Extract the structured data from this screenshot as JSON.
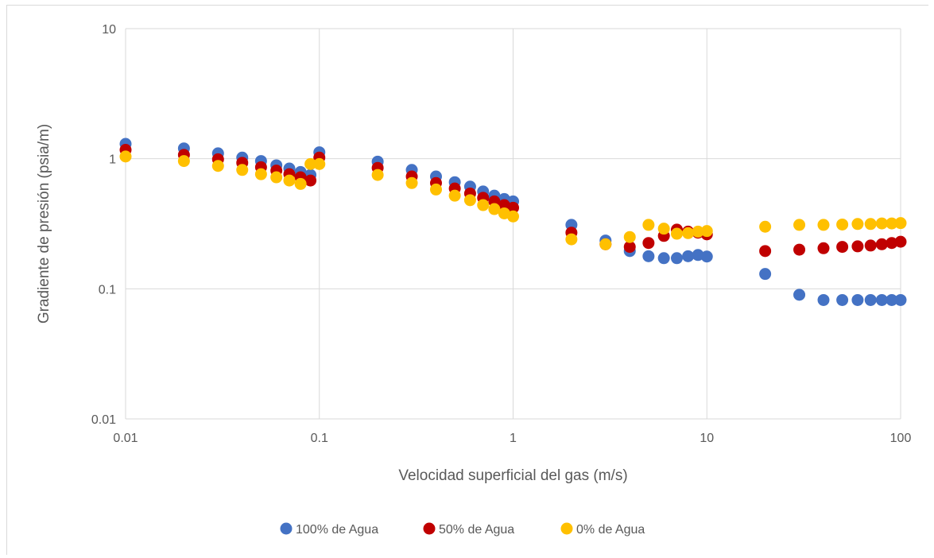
{
  "chart_data": {
    "type": "scatter",
    "title": "",
    "xlabel": "Velocidad superficial del gas (m/s)",
    "ylabel": "Gradiente de presión (psia/m)",
    "xscale": "log",
    "yscale": "log",
    "xlim": [
      0.01,
      100
    ],
    "ylim": [
      0.01,
      10
    ],
    "x_ticks": [
      0.01,
      0.1,
      1,
      10,
      100
    ],
    "x_tick_labels": [
      "0.01",
      "0.1",
      "1",
      "10",
      "100"
    ],
    "y_ticks": [
      0.01,
      0.1,
      1,
      10
    ],
    "y_tick_labels": [
      "0.01",
      "0.1",
      "1",
      "10"
    ],
    "grid": true,
    "legend_position": "bottom",
    "series": [
      {
        "name": "100% de Agua",
        "color": "#4472C4",
        "x": [
          0.01,
          0.02,
          0.03,
          0.04,
          0.05,
          0.06,
          0.07,
          0.08,
          0.09,
          0.1,
          0.2,
          0.3,
          0.4,
          0.5,
          0.6,
          0.7,
          0.8,
          0.9,
          1,
          2,
          3,
          4,
          5,
          6,
          7,
          8,
          9,
          10,
          20,
          30,
          40,
          50,
          60,
          70,
          80,
          90,
          100
        ],
        "y": [
          1.3,
          1.2,
          1.1,
          1.02,
          0.96,
          0.89,
          0.84,
          0.79,
          0.75,
          1.12,
          0.95,
          0.82,
          0.73,
          0.66,
          0.61,
          0.56,
          0.52,
          0.49,
          0.47,
          0.31,
          0.235,
          0.195,
          0.178,
          0.172,
          0.172,
          0.178,
          0.182,
          0.177,
          0.13,
          0.09,
          0.082,
          0.082,
          0.082,
          0.082,
          0.082,
          0.082,
          0.082
        ]
      },
      {
        "name": "50% de Agua",
        "color": "#C00000",
        "x": [
          0.01,
          0.02,
          0.03,
          0.04,
          0.05,
          0.06,
          0.07,
          0.08,
          0.09,
          0.1,
          0.2,
          0.3,
          0.4,
          0.5,
          0.6,
          0.7,
          0.8,
          0.9,
          1,
          2,
          3,
          4,
          5,
          6,
          7,
          8,
          9,
          10,
          20,
          30,
          40,
          50,
          60,
          70,
          80,
          90,
          100
        ],
        "y": [
          1.17,
          1.07,
          0.99,
          0.93,
          0.86,
          0.81,
          0.76,
          0.72,
          0.68,
          1.02,
          0.85,
          0.73,
          0.65,
          0.59,
          0.54,
          0.5,
          0.47,
          0.44,
          0.42,
          0.27,
          0.22,
          0.21,
          0.225,
          0.255,
          0.285,
          0.275,
          0.27,
          0.262,
          0.195,
          0.2,
          0.205,
          0.21,
          0.212,
          0.215,
          0.22,
          0.225,
          0.23
        ]
      },
      {
        "name": "0% de Agua",
        "color": "#FFC000",
        "x": [
          0.01,
          0.02,
          0.03,
          0.04,
          0.05,
          0.06,
          0.07,
          0.08,
          0.09,
          0.1,
          0.2,
          0.3,
          0.4,
          0.5,
          0.6,
          0.7,
          0.8,
          0.9,
          1,
          2,
          3,
          4,
          5,
          6,
          7,
          8,
          9,
          10,
          20,
          30,
          40,
          50,
          60,
          70,
          80,
          90,
          100
        ],
        "y": [
          1.04,
          0.96,
          0.88,
          0.82,
          0.76,
          0.72,
          0.68,
          0.64,
          0.91,
          0.91,
          0.75,
          0.65,
          0.58,
          0.52,
          0.48,
          0.44,
          0.41,
          0.38,
          0.36,
          0.24,
          0.22,
          0.25,
          0.31,
          0.29,
          0.265,
          0.268,
          0.275,
          0.278,
          0.3,
          0.31,
          0.31,
          0.312,
          0.315,
          0.315,
          0.318,
          0.318,
          0.32
        ]
      }
    ]
  }
}
